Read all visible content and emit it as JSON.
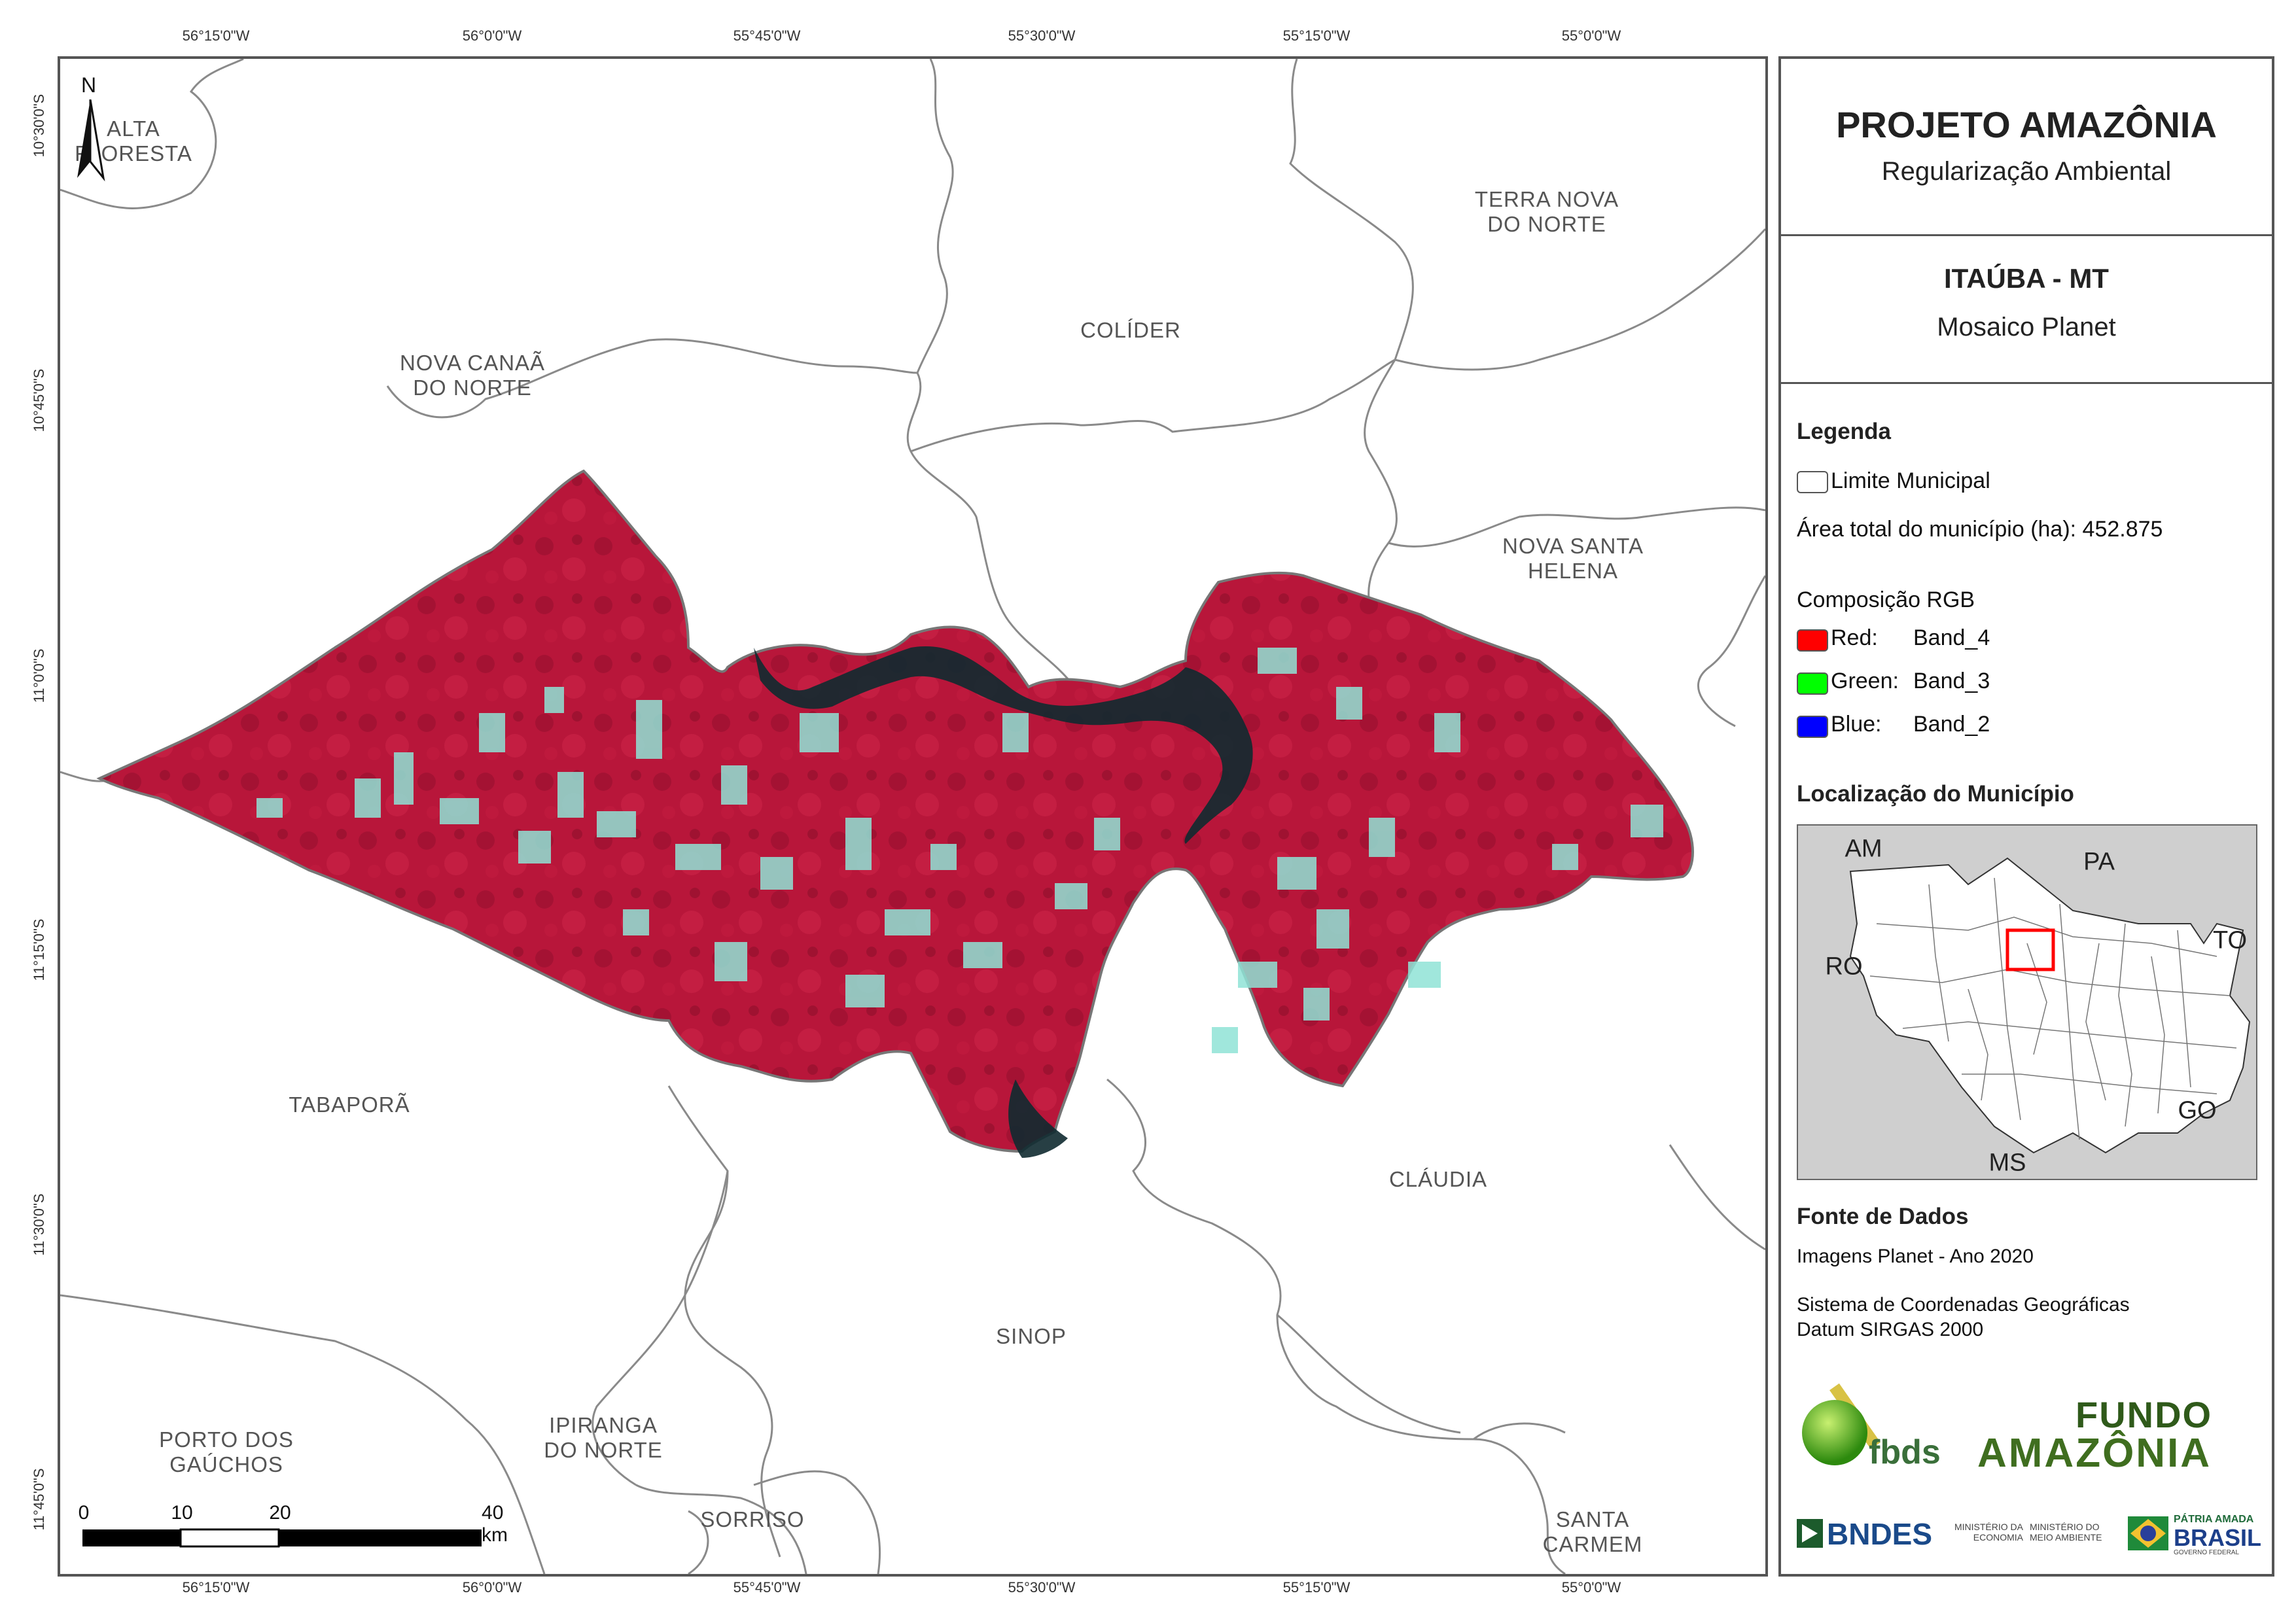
{
  "map": {
    "coords_top": [
      "56°15'0\"W",
      "56°0'0\"W",
      "55°45'0\"W",
      "55°30'0\"W",
      "55°15'0\"W",
      "55°0'0\"W"
    ],
    "coords_bottom": [
      "56°15'0\"W",
      "56°0'0\"W",
      "55°45'0\"W",
      "55°30'0\"W",
      "55°15'0\"W",
      "55°0'0\"W"
    ],
    "coords_left": [
      "10°30'0\"S",
      "10°45'0\"S",
      "11°0'0\"S",
      "11°15'0\"S",
      "11°30'0\"S",
      "11°45'0\"S"
    ],
    "north_label": "N",
    "municipalities": {
      "alta_floresta": "ALTA\nFLORESTA",
      "terra_nova": "TERRA NOVA\nDO NORTE",
      "colider": "COLÍDER",
      "nova_canaa": "NOVA CANAÃ\nDO NORTE",
      "nova_santa_helena": "NOVA SANTA\nHELENA",
      "tabapora": "TABAPORÃ",
      "claudia": "CLÁUDIA",
      "sinop": "SINOP",
      "porto_dos_gauchos": "PORTO DOS\nGAÚCHOS",
      "ipiranga": "IPIRANGA\nDO NORTE",
      "sorriso": "SORRISO",
      "santa_carmem": "SANTA CARMEM"
    },
    "scale": {
      "ticks": [
        "0",
        "10",
        "20",
        "40 km"
      ]
    },
    "colors": {
      "vegetation": "#b8163a",
      "vegetation_dark": "#8e0f2b",
      "cleared": "#8fe3d6",
      "water": "#0f2a30",
      "boundary": "#8a8a8a"
    }
  },
  "panel": {
    "title": "PROJETO AMAZÔNIA",
    "subtitle": "Regularização Ambiental",
    "place": "ITAÚBA - MT",
    "product": "Mosaico Planet",
    "legend_heading": "Legenda",
    "limite_label": "Limite Municipal",
    "area_label": "Área total do município (ha): 452.875",
    "rgb_heading": "Composição RGB",
    "rgb": [
      {
        "channel": "Red:",
        "band": "Band_4",
        "color": "#ff0000"
      },
      {
        "channel": "Green:",
        "band": "Band_3",
        "color": "#00ff00"
      },
      {
        "channel": "Blue:",
        "band": "Band_2",
        "color": "#0000ff"
      }
    ],
    "locator_heading": "Localização do Município",
    "locator_states": [
      "AM",
      "PA",
      "TO",
      "RO",
      "GO",
      "MS"
    ],
    "sources_heading": "Fonte de Dados",
    "source_images": "Imagens Planet - Ano 2020",
    "crs_line1": "Sistema de Coordenadas Geográficas",
    "crs_line2": "Datum SIRGAS 2000",
    "logos": {
      "fbds": "fbds",
      "fundo_line1": "FUNDO",
      "fundo_line2": "AMAZÔNIA",
      "bndes": "BNDES",
      "min_economia": "MINISTÉRIO DA\nECONOMIA",
      "min_meio": "MINISTÉRIO DO\nMEIO AMBIENTE",
      "patria": "PÁTRIA AMADA",
      "brasil": "BRASIL",
      "gov": "GOVERNO FEDERAL"
    }
  }
}
